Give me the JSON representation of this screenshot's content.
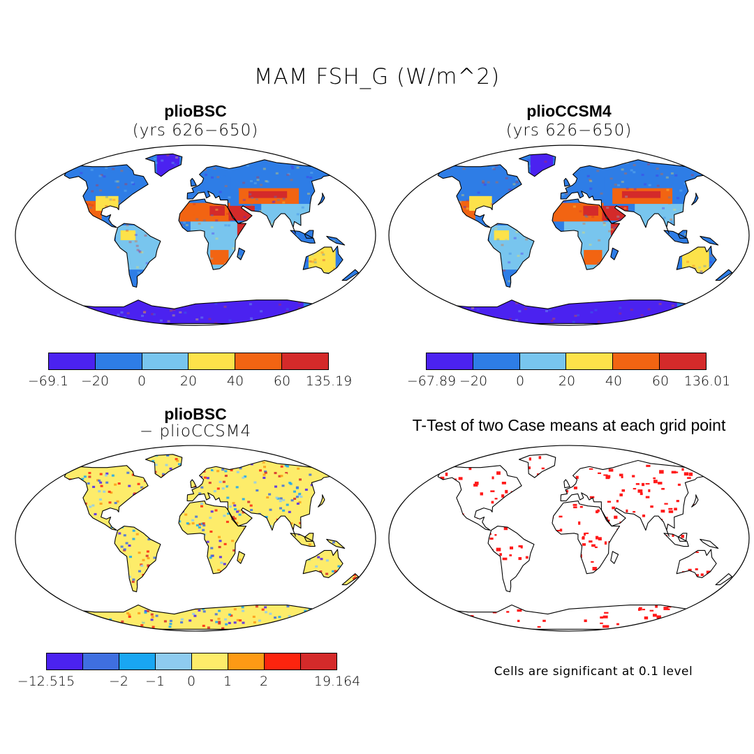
{
  "title": "MAM FSH_G (W/m^2)",
  "panels": [
    {
      "title": "plioBSC",
      "subtitle": "(yrs 626−650)",
      "colors": [
        "#4b22f0",
        "#2e7de6",
        "#78c5ee",
        "#fde24a",
        "#f26412",
        "#d42a2a"
      ],
      "labels": [
        "−69.1",
        "−20",
        "0",
        "20",
        "40",
        "60",
        "135.19"
      ]
    },
    {
      "title": "plioCCSM4",
      "subtitle": "(yrs 626−650)",
      "colors": [
        "#4b22f0",
        "#2e7de6",
        "#78c5ee",
        "#fde24a",
        "#f26412",
        "#d42a2a"
      ],
      "labels": [
        "−67.89",
        "−20",
        "0",
        "20",
        "40",
        "60",
        "136.01"
      ]
    },
    {
      "title": "plioBSC",
      "subtitle": "− plioCCSM4",
      "colors": [
        "#4b22f0",
        "#3f6fe0",
        "#19a6f2",
        "#8ecbef",
        "#fdec6a",
        "#fd9a15",
        "#fc240e",
        "#d42a2a"
      ],
      "labels": [
        "−12.515",
        "−2",
        "−1",
        "0",
        "1",
        "2",
        "19.164"
      ]
    },
    {
      "title": "T-Test of two Case means at each grid point",
      "note": "Cells are significant at 0.1 level",
      "color": "#ff1a1a"
    }
  ]
}
